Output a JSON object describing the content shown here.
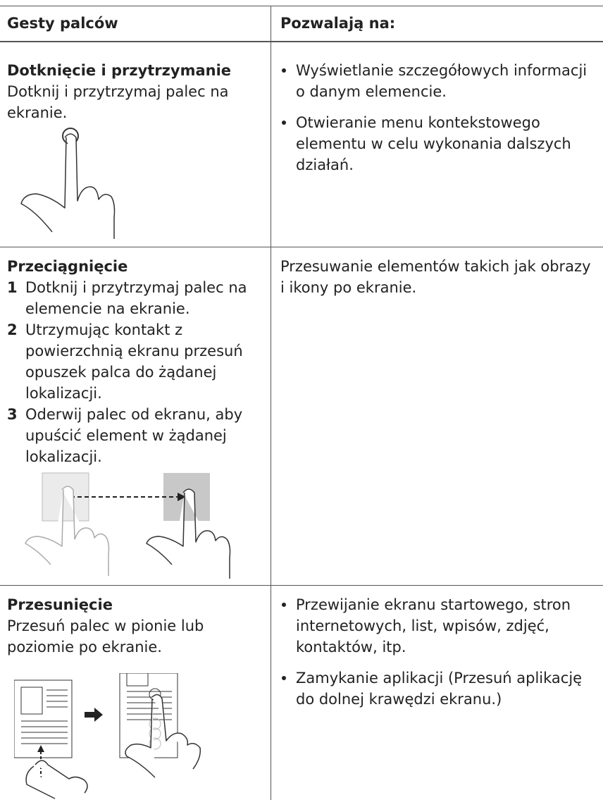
{
  "table": {
    "header": [
      "Gesty palców",
      "Pozwalają na:"
    ],
    "rows": [
      {
        "title": "Dotknięcie i przytrzymanie",
        "description": "Dotknij i przytrzymaj palec na ekranie.",
        "bullets": [
          "Wyświetlanie szczegółowych informacji o danym elemencie.",
          "Otwieranie menu kontekstowego elementu w celu wykonania dalszych działań."
        ]
      },
      {
        "title": "Przeciągnięcie",
        "steps": [
          {
            "number": "1",
            "text": "Dotknij i przytrzymaj palec na elemencie na ekranie."
          },
          {
            "number": "2",
            "text": "Utrzymując kontakt z powierzchnią ekranu przesuń opuszek palca do żądanej lokalizacji."
          },
          {
            "number": "3",
            "text": "Oderwij palec od ekranu, aby upuścić element w żądanej lokalizacji."
          }
        ],
        "text": "Przesuwanie elementów takich jak obrazy i ikony po ekranie."
      },
      {
        "title": "Przesunięcie",
        "description": "Przesuń palec w pionie lub poziomie po ekranie.",
        "bullets": [
          "Przewijanie ekranu startowego, stron internetowych, list, wpisów, zdjęć, kontaktów, itp.",
          "Zamykanie aplikacji (Przesuń aplikację do dolnej krawędzi ekranu.)"
        ]
      }
    ]
  }
}
